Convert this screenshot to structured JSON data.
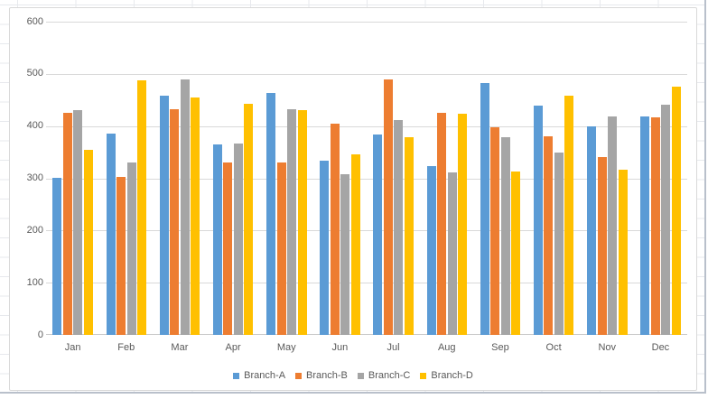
{
  "chart_data": {
    "type": "bar",
    "title": "",
    "xlabel": "",
    "ylabel": "",
    "categories": [
      "Jan",
      "Feb",
      "Mar",
      "Apr",
      "May",
      "Jun",
      "Jul",
      "Aug",
      "Sep",
      "Oct",
      "Nov",
      "Dec"
    ],
    "series": [
      {
        "name": "Branch-A",
        "color": "#5B9BD5",
        "values": [
          301,
          385,
          458,
          365,
          464,
          333,
          384,
          324,
          483,
          440,
          400,
          418
        ]
      },
      {
        "name": "Branch-B",
        "color": "#ED7D31",
        "values": [
          425,
          303,
          432,
          330,
          331,
          405,
          489,
          425,
          397,
          381,
          340,
          416
        ]
      },
      {
        "name": "Branch-C",
        "color": "#A5A5A5",
        "values": [
          430,
          330,
          490,
          366,
          433,
          308,
          411,
          311,
          378,
          349,
          418,
          441
        ]
      },
      {
        "name": "Branch-D",
        "color": "#FFC000",
        "values": [
          355,
          487,
          454,
          442,
          430,
          346,
          378,
          423,
          313,
          458,
          317,
          475
        ]
      }
    ],
    "ylim": [
      0,
      600
    ],
    "yticks": [
      0,
      100,
      200,
      300,
      400,
      500,
      600
    ],
    "grid": true,
    "legend_position": "bottom"
  },
  "colors": {
    "axis_text": "#595959",
    "gridline": "#d9d9d9",
    "axis_line": "#c9c9c9",
    "chart_border": "#d9d9d9",
    "sheet_gridline": "#e7e9ed",
    "frame_edge": "#b9c0cb"
  }
}
